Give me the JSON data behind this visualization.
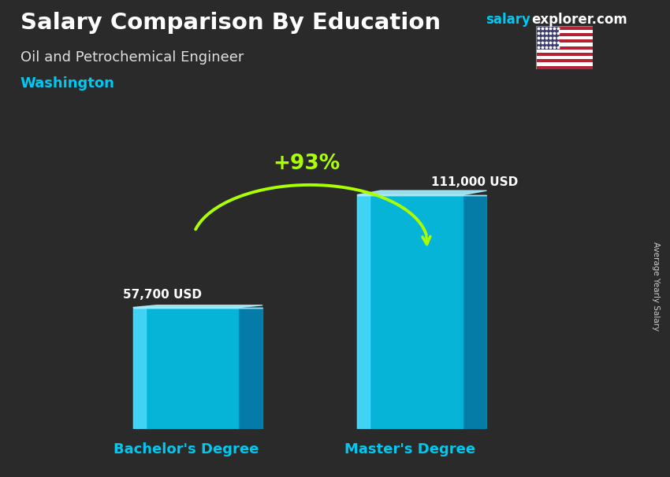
{
  "title": "Salary Comparison By Education",
  "subtitle": "Oil and Petrochemical Engineer",
  "location": "Washington",
  "ylabel": "Average Yearly Salary",
  "categories": [
    "Bachelor's Degree",
    "Master's Degree"
  ],
  "values": [
    57700,
    111000
  ],
  "value_labels": [
    "57,700 USD",
    "111,000 USD"
  ],
  "pct_change": "+93%",
  "bar_color_face": "#00c8f0",
  "bar_color_left": "#55deff",
  "bar_color_right": "#0088bb",
  "bar_color_top": "#aaf0ff",
  "bg_color": "#2a2a2a",
  "title_color": "#ffffff",
  "subtitle_color": "#e0e0e0",
  "location_color": "#00c8f0",
  "label_color": "#ffffff",
  "xlabel_color": "#00c8f0",
  "pct_color": "#aaff00",
  "arc_color": "#aaff00",
  "arrow_color": "#aaff00",
  "watermark_salary_color": "#00c8f0",
  "watermark_explorer_color": "#ffffff",
  "ylabel_color": "#cccccc",
  "bar_positions": [
    0.27,
    0.65
  ],
  "bar_width": 0.18,
  "bar_depth": 0.04,
  "ylim": [
    0,
    140000
  ],
  "xlim": [
    0,
    1
  ],
  "figsize": [
    8.5,
    6.06
  ],
  "dpi": 100
}
